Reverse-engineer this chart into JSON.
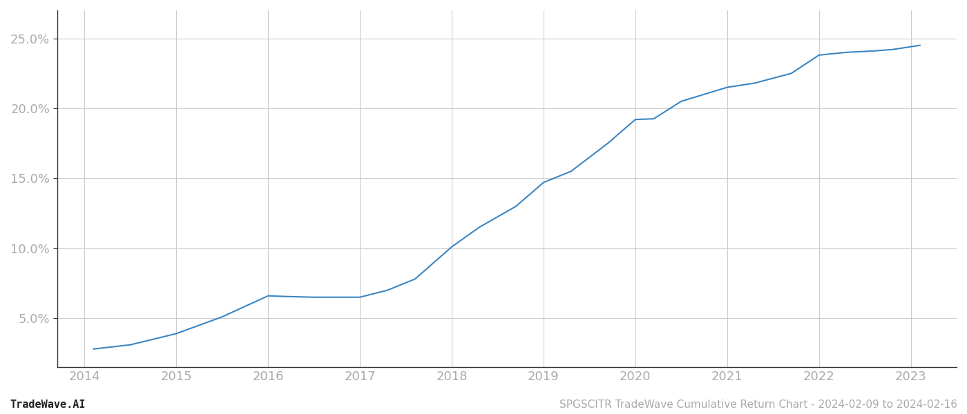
{
  "title": "SPGSCITR TradeWave Cumulative Return Chart - 2024-02-09 to 2024-02-16",
  "footnote_left": "TradeWave.AI",
  "footnote_right": "SPGSCITR TradeWave Cumulative Return Chart - 2024-02-09 to 2024-02-16",
  "line_color": "#3a85c2",
  "background_color": "#ffffff",
  "grid_color": "#cccccc",
  "x_values": [
    2014.1,
    2014.5,
    2015.0,
    2015.5,
    2016.0,
    2016.2,
    2016.5,
    2017.0,
    2017.3,
    2017.6,
    2018.0,
    2018.3,
    2018.7,
    2019.0,
    2019.3,
    2019.7,
    2020.0,
    2020.2,
    2020.5,
    2021.0,
    2021.3,
    2021.7,
    2022.0,
    2022.3,
    2022.6,
    2022.8,
    2023.0,
    2023.1
  ],
  "y_values": [
    2.8,
    3.1,
    3.9,
    5.1,
    6.6,
    6.55,
    6.5,
    6.5,
    7.0,
    7.8,
    10.1,
    11.5,
    13.0,
    14.7,
    15.5,
    17.5,
    19.2,
    19.25,
    20.5,
    21.5,
    21.8,
    22.5,
    23.8,
    24.0,
    24.1,
    24.2,
    24.4,
    24.5
  ],
  "xlim": [
    2013.7,
    2023.5
  ],
  "ylim": [
    1.5,
    27
  ],
  "yticks": [
    5.0,
    10.0,
    15.0,
    20.0,
    25.0
  ],
  "xticks": [
    2014,
    2015,
    2016,
    2017,
    2018,
    2019,
    2020,
    2021,
    2022,
    2023
  ],
  "line_width": 1.5,
  "tick_label_color": "#aaaaaa",
  "tick_label_size": 13,
  "footnote_size": 11,
  "footnote_color_left": "#222222",
  "footnote_color_right": "#aaaaaa",
  "spine_color": "#333333"
}
